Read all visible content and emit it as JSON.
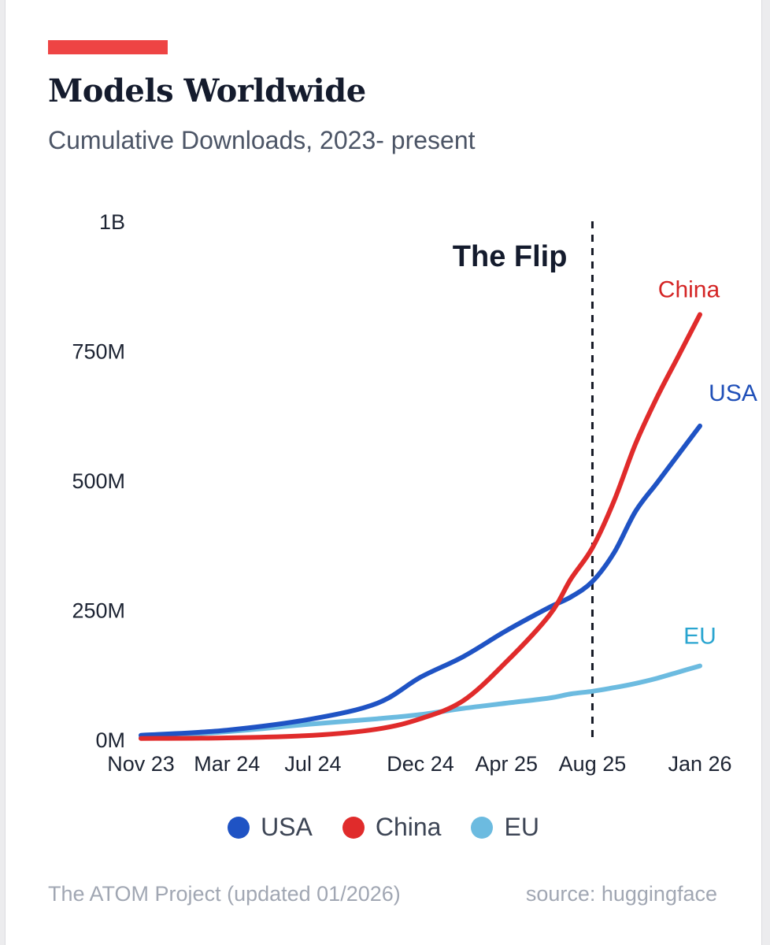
{
  "accent_color": "#ee4444",
  "header": {
    "title": "Models Worldwide",
    "subtitle": "Cumulative Downloads, 2023- present"
  },
  "chart_data": {
    "type": "line",
    "title": "Models Worldwide",
    "subtitle": "Cumulative Downloads, 2023- present",
    "xlabel": "",
    "ylabel": "",
    "x_ticks": [
      "Nov 23",
      "Mar 24",
      "Jul 24",
      "Dec 24",
      "Apr 25",
      "Aug 25",
      "Jan 26"
    ],
    "x_tick_months": [
      0,
      4,
      8,
      13,
      17,
      21,
      26
    ],
    "x_range_months": [
      0,
      26
    ],
    "x_origin": "Nov 2023",
    "y_ticks": [
      0,
      250,
      500,
      750,
      1000
    ],
    "y_tick_labels": [
      "0M",
      "250M",
      "500M",
      "750M",
      "1B"
    ],
    "y_unit": "millions",
    "ylim": [
      0,
      1000
    ],
    "grid": false,
    "annotation": {
      "label": "The Flip",
      "x_month": 21.0,
      "style": "dashed vertical line"
    },
    "series": [
      {
        "name": "USA",
        "color": "#1f53c4",
        "end_label": "USA",
        "points": [
          [
            0,
            8
          ],
          [
            4,
            18
          ],
          [
            8,
            40
          ],
          [
            11,
            70
          ],
          [
            13,
            120
          ],
          [
            15,
            160
          ],
          [
            17,
            210
          ],
          [
            19,
            255
          ],
          [
            20,
            275
          ],
          [
            21,
            305
          ],
          [
            22,
            360
          ],
          [
            23,
            440
          ],
          [
            24,
            495
          ],
          [
            25,
            550
          ],
          [
            26,
            605
          ]
        ]
      },
      {
        "name": "China",
        "color": "#e02b2b",
        "end_label": "China",
        "points": [
          [
            0,
            2
          ],
          [
            4,
            3
          ],
          [
            8,
            8
          ],
          [
            11,
            20
          ],
          [
            13,
            40
          ],
          [
            15,
            75
          ],
          [
            17,
            150
          ],
          [
            19,
            240
          ],
          [
            20,
            310
          ],
          [
            21,
            370
          ],
          [
            22,
            460
          ],
          [
            23,
            570
          ],
          [
            24,
            660
          ],
          [
            25,
            740
          ],
          [
            26,
            820
          ]
        ]
      },
      {
        "name": "EU",
        "color": "#6cbbe0",
        "end_label": "EU",
        "points": [
          [
            0,
            4
          ],
          [
            4,
            15
          ],
          [
            8,
            30
          ],
          [
            11,
            40
          ],
          [
            13,
            48
          ],
          [
            15,
            60
          ],
          [
            17,
            70
          ],
          [
            19,
            80
          ],
          [
            20,
            88
          ],
          [
            21,
            93
          ],
          [
            22,
            100
          ],
          [
            23,
            108
          ],
          [
            24,
            118
          ],
          [
            25,
            130
          ],
          [
            26,
            142
          ]
        ]
      }
    ]
  },
  "legend": {
    "items": [
      {
        "label": "USA",
        "color": "#1f53c4"
      },
      {
        "label": "China",
        "color": "#e02b2b"
      },
      {
        "label": "EU",
        "color": "#6cbbe0"
      }
    ]
  },
  "footer": {
    "left": "The ATOM Project (updated 01/2026)",
    "right": "source: huggingface"
  }
}
